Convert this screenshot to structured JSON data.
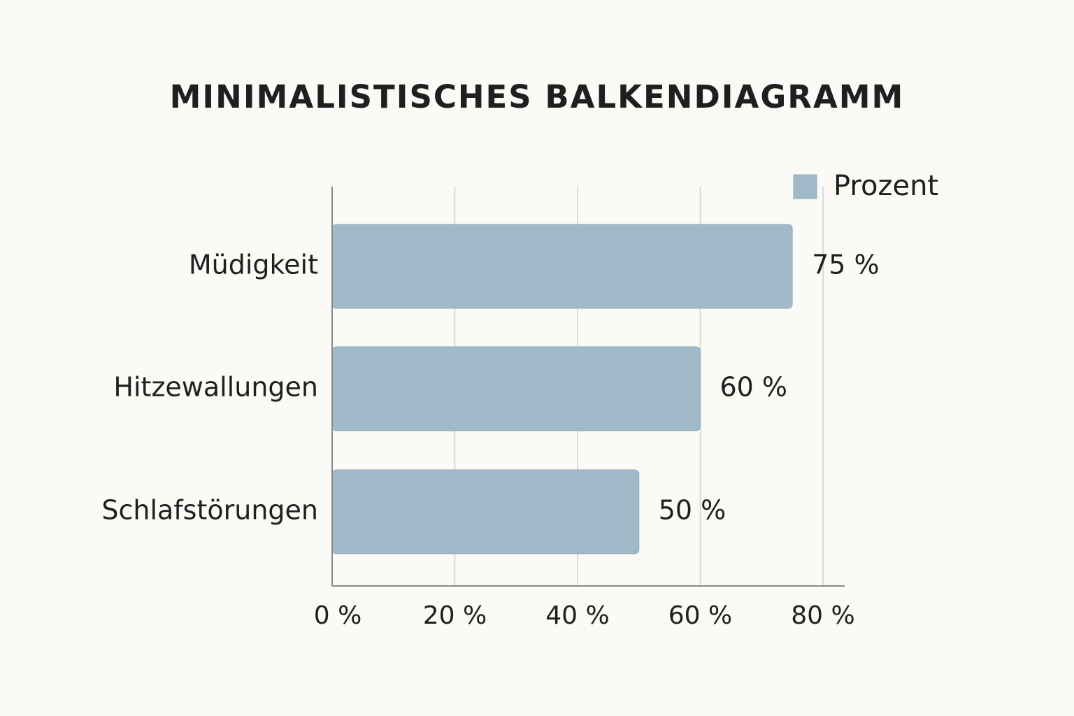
{
  "chart_data": {
    "type": "bar",
    "orientation": "horizontal",
    "title": "MINIMALISTISCHES BALKENDIAGRAMM",
    "categories": [
      "Müdigkeit",
      "Hitzewallungen",
      "Schlafstörungen"
    ],
    "series": [
      {
        "name": "Prozent",
        "values": [
          75,
          60,
          50
        ],
        "value_labels": [
          "75 %",
          "60 %",
          "50 %"
        ],
        "color": "#a0bac9"
      }
    ],
    "xlim": [
      0,
      80
    ],
    "x_ticks": [
      0,
      20,
      40,
      60,
      80
    ],
    "x_tick_labels": [
      "0 %",
      "20 %",
      "40 %",
      "60 %",
      "80 %"
    ],
    "xlabel": "",
    "ylabel": "",
    "grid": true,
    "legend_position": "top-right"
  },
  "colors": {
    "background": "#fbfaf6",
    "bar": "#a0bac9",
    "bar_edge": "#8fabbc",
    "grid": "#cfcfcf",
    "axis": "#8a8a8a",
    "text": "#1f1f1f"
  }
}
